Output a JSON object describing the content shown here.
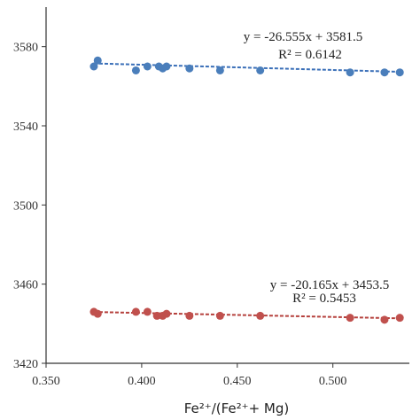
{
  "chart_data": {
    "type": "scatter",
    "title": "",
    "xlabel": "Fe²⁺/(Fe²⁺+ Mg)",
    "ylabel": "",
    "xlim": [
      0.35,
      0.54
    ],
    "ylim": [
      3420,
      3600
    ],
    "x_ticks": [
      "0.350",
      "0.400",
      "0.450",
      "0.500"
    ],
    "y_ticks": [
      "3420",
      "3460",
      "3500",
      "3540",
      "3580"
    ],
    "grid": false,
    "series": [
      {
        "color": "#4a7ebb",
        "trend_color": "#3a6fb8",
        "points": [
          {
            "x": 0.375,
            "y": 3570
          },
          {
            "x": 0.377,
            "y": 3573
          },
          {
            "x": 0.397,
            "y": 3568
          },
          {
            "x": 0.403,
            "y": 3570
          },
          {
            "x": 0.409,
            "y": 3570
          },
          {
            "x": 0.411,
            "y": 3569
          },
          {
            "x": 0.413,
            "y": 3570
          },
          {
            "x": 0.425,
            "y": 3569
          },
          {
            "x": 0.441,
            "y": 3568
          },
          {
            "x": 0.462,
            "y": 3568
          },
          {
            "x": 0.509,
            "y": 3567
          },
          {
            "x": 0.527,
            "y": 3567
          },
          {
            "x": 0.535,
            "y": 3567
          }
        ],
        "trendline": {
          "slope": -26.555,
          "intercept": 3581.5
        },
        "equation": "y = -26.555x + 3581.5",
        "r2": "R² = 0.6142"
      },
      {
        "color": "#c0504d",
        "trend_color": "#b5403c",
        "points": [
          {
            "x": 0.375,
            "y": 3446
          },
          {
            "x": 0.377,
            "y": 3445
          },
          {
            "x": 0.397,
            "y": 3446
          },
          {
            "x": 0.403,
            "y": 3446
          },
          {
            "x": 0.408,
            "y": 3444
          },
          {
            "x": 0.411,
            "y": 3444
          },
          {
            "x": 0.413,
            "y": 3445
          },
          {
            "x": 0.425,
            "y": 3444
          },
          {
            "x": 0.441,
            "y": 3444
          },
          {
            "x": 0.462,
            "y": 3444
          },
          {
            "x": 0.509,
            "y": 3443
          },
          {
            "x": 0.527,
            "y": 3442
          },
          {
            "x": 0.535,
            "y": 3443
          }
        ],
        "trendline": {
          "slope": -20.165,
          "intercept": 3453.5
        },
        "equation": "y = -20.165x + 3453.5",
        "r2": "R² = 0.5453"
      }
    ]
  }
}
